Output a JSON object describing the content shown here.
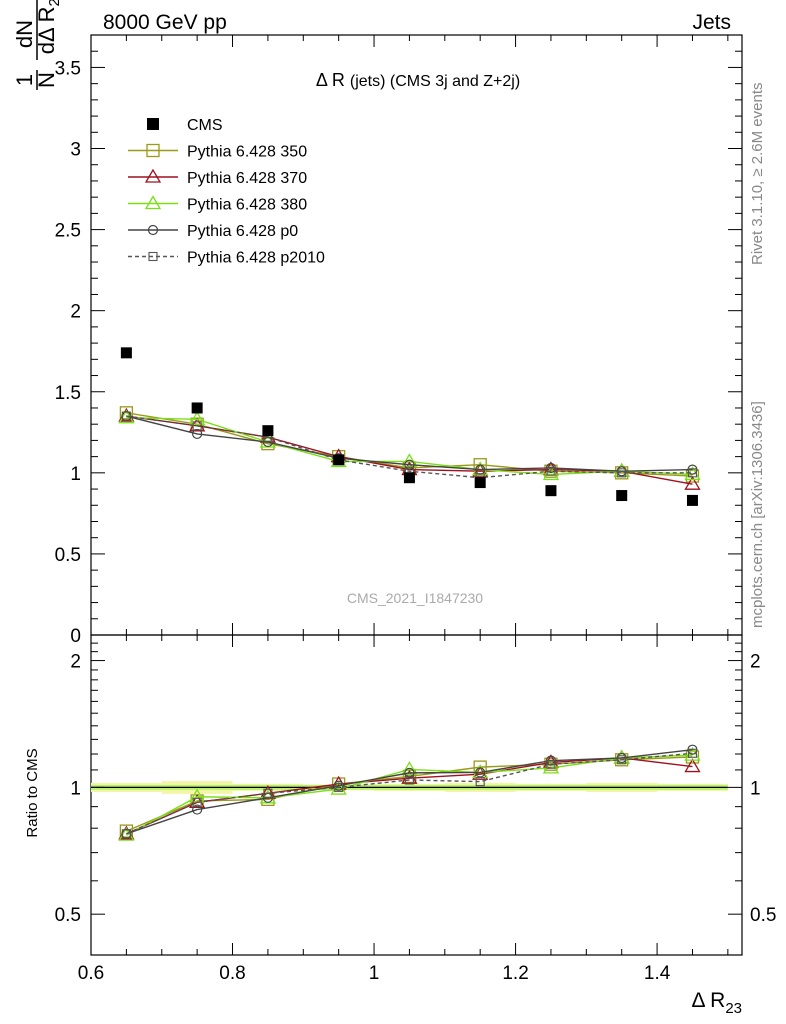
{
  "header": {
    "left": "8000 GeV pp",
    "right": "Jets"
  },
  "side_labels": {
    "rivet": "Rivet 3.1.10, ≥ 2.6M events",
    "mcplots": "mcplots.cern.ch [arXiv:1306.3436]"
  },
  "watermark": "CMS_2021_I1847230",
  "chart_data": {
    "type": "scatter",
    "title": "Δ R (jets) (CMS 3j and Z+2j)",
    "xlabel": "Δ R",
    "xlabel_sub": "23",
    "ylabel_main": "1/N dN/dΔ R23",
    "ylabel_ratio": "Ratio to CMS",
    "xlim": [
      0.6,
      1.52
    ],
    "ylim_main": [
      0,
      3.7
    ],
    "ylim_ratio": [
      0.4,
      2.3
    ],
    "x_ticks": [
      "0.6",
      "0.8",
      "1",
      "1.2",
      "1.4"
    ],
    "y_ticks_main": [
      "0",
      "0.5",
      "1",
      "1.5",
      "2",
      "2.5",
      "3",
      "3.5"
    ],
    "y_ticks_ratio": [
      "0.5",
      "1",
      "2"
    ],
    "x": [
      0.65,
      0.75,
      0.85,
      0.95,
      1.05,
      1.15,
      1.25,
      1.35,
      1.45
    ],
    "data": {
      "name": "CMS",
      "values": [
        1.74,
        1.4,
        1.26,
        1.08,
        0.97,
        0.94,
        0.89,
        0.86,
        0.83
      ]
    },
    "ratio_band": [
      0.025,
      0.035,
      0.02,
      0.015,
      0.02,
      0.025,
      0.02,
      0.025,
      0.02
    ],
    "series": [
      {
        "name": "Pythia 6.428 350",
        "color": "#9a9a1a",
        "marker": "square",
        "dash": false,
        "values": [
          1.37,
          1.3,
          1.18,
          1.1,
          1.03,
          1.05,
          1.01,
          1.0,
          0.98
        ]
      },
      {
        "name": "Pythia 6.428 370",
        "color": "#a0101e",
        "marker": "triangle",
        "dash": false,
        "values": [
          1.35,
          1.29,
          1.22,
          1.1,
          1.02,
          1.01,
          1.02,
          1.01,
          0.93
        ]
      },
      {
        "name": "Pythia 6.428 380",
        "color": "#7ae016",
        "marker": "triangle",
        "dash": false,
        "values": [
          1.34,
          1.33,
          1.19,
          1.07,
          1.07,
          1.02,
          0.99,
          1.01,
          0.99
        ]
      },
      {
        "name": "Pythia 6.428 p0",
        "color": "#444444",
        "marker": "circle",
        "dash": false,
        "values": [
          1.35,
          1.24,
          1.19,
          1.09,
          1.05,
          1.02,
          1.03,
          1.01,
          1.02
        ]
      },
      {
        "name": "Pythia 6.428 p2010",
        "color": "#555555",
        "marker": "square-small",
        "dash": true,
        "values": [
          1.35,
          1.29,
          1.22,
          1.08,
          1.01,
          0.97,
          1.01,
          1.0,
          1.0
        ]
      }
    ]
  }
}
